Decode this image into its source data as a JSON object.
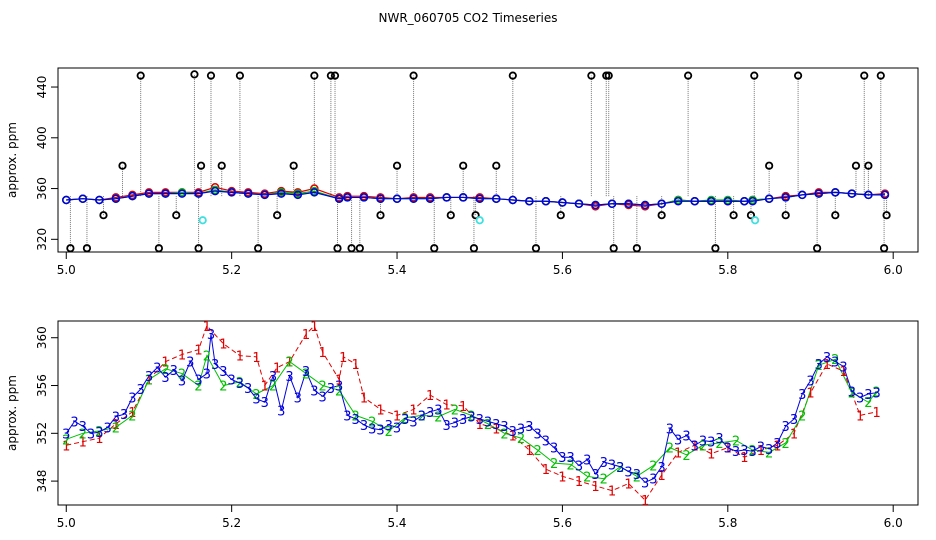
{
  "figure": {
    "title": "NWR_060705  CO2 Timeseries"
  },
  "colors": {
    "red": "#e00000",
    "green": "#00c000",
    "blue": "#0000e0",
    "black": "#000000",
    "cyan": "#40e0e0",
    "gray": "#777777"
  },
  "chart_data": [
    {
      "type": "line",
      "ylabel": "approx. ppm",
      "xlim": [
        4.99,
        6.03
      ],
      "ylim": [
        310,
        455
      ],
      "xticks": [
        5.0,
        5.2,
        5.4,
        5.6,
        5.8,
        6.0
      ],
      "xtick_labels": [
        "5.0",
        "5.2",
        "5.4",
        "5.6",
        "5.8",
        "6.0"
      ],
      "yticks": [
        320,
        360,
        400,
        440
      ],
      "ytick_labels": [
        "320",
        "360",
        "400",
        "440"
      ],
      "grid": false,
      "series": [
        {
          "color": "red",
          "x": [
            5.0,
            5.02,
            5.04,
            5.06,
            5.08,
            5.1,
            5.12,
            5.14,
            5.16,
            5.18,
            5.2,
            5.22,
            5.24,
            5.26,
            5.28,
            5.3,
            5.33,
            5.34,
            5.36,
            5.38,
            5.4,
            5.42,
            5.44,
            5.46,
            5.48,
            5.5,
            5.52,
            5.54,
            5.56,
            5.58,
            5.6,
            5.62,
            5.64,
            5.66,
            5.68,
            5.7,
            5.72,
            5.74,
            5.76,
            5.78,
            5.8,
            5.82,
            5.83,
            5.85,
            5.87,
            5.89,
            5.91,
            5.93,
            5.95,
            5.97,
            5.99
          ],
          "y": [
            351,
            352,
            351,
            353,
            355,
            357,
            357,
            357,
            357,
            361,
            358,
            357,
            356,
            358,
            357,
            360,
            353,
            354,
            354,
            353,
            352,
            353,
            353,
            353,
            353,
            353,
            352,
            351,
            350,
            350,
            349,
            348,
            346,
            348,
            347,
            346,
            348,
            351,
            350,
            350,
            350,
            350,
            351,
            352,
            354,
            355,
            357,
            357,
            356,
            355,
            356
          ]
        },
        {
          "color": "green",
          "x": [
            5.0,
            5.02,
            5.04,
            5.06,
            5.08,
            5.1,
            5.12,
            5.14,
            5.16,
            5.18,
            5.2,
            5.22,
            5.24,
            5.26,
            5.28,
            5.3,
            5.33,
            5.34,
            5.36,
            5.38,
            5.4,
            5.42,
            5.44,
            5.46,
            5.48,
            5.5,
            5.52,
            5.54,
            5.56,
            5.58,
            5.6,
            5.62,
            5.64,
            5.66,
            5.68,
            5.7,
            5.72,
            5.74,
            5.76,
            5.78,
            5.8,
            5.82,
            5.83,
            5.85,
            5.87,
            5.89,
            5.91,
            5.93,
            5.95,
            5.97,
            5.99
          ],
          "y": [
            351,
            352,
            351,
            352,
            354,
            356,
            356,
            357,
            356,
            359,
            357,
            356,
            355,
            357,
            356,
            358,
            352,
            353,
            353,
            352,
            352,
            352,
            352,
            353,
            353,
            352,
            352,
            351,
            350,
            350,
            349,
            348,
            347,
            348,
            348,
            347,
            348,
            351,
            350,
            351,
            351,
            350,
            351,
            352,
            353,
            355,
            356,
            357,
            356,
            355,
            355
          ]
        },
        {
          "color": "blue",
          "x": [
            5.0,
            5.02,
            5.04,
            5.06,
            5.08,
            5.1,
            5.12,
            5.14,
            5.16,
            5.18,
            5.2,
            5.22,
            5.24,
            5.26,
            5.28,
            5.3,
            5.33,
            5.34,
            5.36,
            5.38,
            5.4,
            5.42,
            5.44,
            5.46,
            5.48,
            5.5,
            5.52,
            5.54,
            5.56,
            5.58,
            5.6,
            5.62,
            5.64,
            5.66,
            5.68,
            5.7,
            5.72,
            5.74,
            5.76,
            5.78,
            5.8,
            5.82,
            5.83,
            5.85,
            5.87,
            5.89,
            5.91,
            5.93,
            5.95,
            5.97,
            5.99
          ],
          "y": [
            351,
            352,
            351,
            352,
            354,
            356,
            356,
            356,
            356,
            358,
            357,
            356,
            355,
            356,
            355,
            357,
            352,
            353,
            353,
            352,
            352,
            352,
            352,
            353,
            353,
            352,
            352,
            351,
            350,
            350,
            349,
            348,
            347,
            348,
            348,
            347,
            348,
            350,
            350,
            350,
            350,
            350,
            350,
            352,
            353,
            355,
            356,
            357,
            356,
            355,
            355
          ]
        },
        {
          "color": "black",
          "kind": "outlier-circles",
          "x": [
            5.005,
            5.025,
            5.045,
            5.068,
            5.09,
            5.112,
            5.133,
            5.155,
            5.16,
            5.163,
            5.175,
            5.188,
            5.21,
            5.232,
            5.255,
            5.275,
            5.3,
            5.32,
            5.325,
            5.328,
            5.345,
            5.355,
            5.38,
            5.4,
            5.42,
            5.445,
            5.465,
            5.48,
            5.493,
            5.495,
            5.52,
            5.54,
            5.568,
            5.598,
            5.635,
            5.653,
            5.656,
            5.662,
            5.69,
            5.72,
            5.752,
            5.785,
            5.807,
            5.828,
            5.832,
            5.85,
            5.87,
            5.885,
            5.908,
            5.93,
            5.955,
            5.965,
            5.97,
            5.985,
            5.989,
            5.992
          ],
          "y": [
            313,
            313,
            339,
            378,
            449,
            313,
            339,
            450,
            313,
            378,
            449,
            378,
            449,
            313,
            339,
            378,
            449,
            449,
            449,
            313,
            313,
            313,
            339,
            378,
            449,
            313,
            339,
            378,
            313,
            339,
            378,
            449,
            313,
            339,
            449,
            449,
            449,
            313,
            313,
            339,
            449,
            313,
            339,
            339,
            449,
            378,
            339,
            449,
            313,
            339,
            378,
            449,
            378,
            449,
            313,
            339
          ]
        },
        {
          "color": "cyan",
          "kind": "flagged-circles",
          "x": [
            5.165,
            5.5,
            5.833
          ],
          "y": [
            335,
            335,
            335
          ]
        }
      ]
    },
    {
      "type": "scatter",
      "ylabel": "approx. ppm",
      "xlim": [
        4.99,
        6.03
      ],
      "ylim": [
        346,
        361.4
      ],
      "xticks": [
        5.0,
        5.2,
        5.4,
        5.6,
        5.8,
        6.0
      ],
      "xtick_labels": [
        "5.0",
        "5.2",
        "5.4",
        "5.6",
        "5.8",
        "6.0"
      ],
      "yticks": [
        348,
        352,
        356,
        360
      ],
      "ytick_labels": [
        "348",
        "352",
        "356",
        "360"
      ],
      "grid": false,
      "series": [
        {
          "marker": "1",
          "color": "red",
          "x": [
            5.0,
            5.02,
            5.04,
            5.06,
            5.08,
            5.1,
            5.12,
            5.14,
            5.16,
            5.17,
            5.19,
            5.21,
            5.23,
            5.24,
            5.255,
            5.27,
            5.29,
            5.3,
            5.31,
            5.33,
            5.335,
            5.35,
            5.36,
            5.38,
            5.4,
            5.42,
            5.44,
            5.46,
            5.48,
            5.5,
            5.52,
            5.54,
            5.56,
            5.58,
            5.6,
            5.62,
            5.64,
            5.66,
            5.68,
            5.7,
            5.72,
            5.74,
            5.76,
            5.78,
            5.8,
            5.82,
            5.84,
            5.86,
            5.88,
            5.9,
            5.92,
            5.94,
            5.96,
            5.98
          ],
          "y": [
            351,
            351.3,
            351.6,
            352.8,
            353.8,
            356.5,
            358,
            358.6,
            359,
            361,
            359.5,
            358.5,
            358.4,
            356,
            357.5,
            358,
            360.3,
            361,
            358.8,
            356.5,
            358.4,
            357.8,
            355,
            354,
            353.5,
            354,
            355.2,
            354.4,
            354.3,
            352.8,
            352.4,
            351.8,
            350.6,
            349,
            348.4,
            348,
            347.6,
            347.2,
            347.8,
            346.4,
            348.5,
            350.4,
            351,
            350.3,
            350.8,
            350,
            350.6,
            351,
            352,
            355.4,
            357.8,
            357.2,
            353.5,
            353.8
          ]
        },
        {
          "marker": "2",
          "color": "green",
          "x": [
            5.0,
            5.02,
            5.04,
            5.06,
            5.08,
            5.1,
            5.12,
            5.14,
            5.16,
            5.17,
            5.19,
            5.21,
            5.23,
            5.25,
            5.27,
            5.29,
            5.31,
            5.33,
            5.35,
            5.37,
            5.39,
            5.41,
            5.43,
            5.45,
            5.47,
            5.49,
            5.51,
            5.53,
            5.55,
            5.57,
            5.59,
            5.61,
            5.63,
            5.65,
            5.67,
            5.69,
            5.71,
            5.73,
            5.75,
            5.77,
            5.79,
            5.81,
            5.83,
            5.85,
            5.87,
            5.89,
            5.91,
            5.93,
            5.95,
            5.97,
            5.98
          ],
          "y": [
            351.5,
            352,
            352.2,
            352.5,
            353.5,
            356.5,
            357.4,
            357,
            356,
            358.5,
            356,
            356.3,
            355.3,
            356,
            358,
            357,
            356,
            355.6,
            353.5,
            353,
            352.2,
            353.3,
            353.5,
            353.4,
            354,
            353.5,
            352.8,
            352,
            351.6,
            350.6,
            349.5,
            349.4,
            348.4,
            348.2,
            349.2,
            348.4,
            349.3,
            350.8,
            350.2,
            351,
            351.2,
            351.4,
            350.6,
            350.4,
            351.2,
            353.5,
            357.7,
            358.2,
            355.4,
            354.6,
            355.5
          ]
        },
        {
          "marker": "3",
          "color": "blue",
          "x": [
            5.0,
            5.01,
            5.02,
            5.03,
            5.04,
            5.05,
            5.06,
            5.07,
            5.08,
            5.09,
            5.1,
            5.11,
            5.12,
            5.13,
            5.14,
            5.15,
            5.16,
            5.17,
            5.175,
            5.18,
            5.19,
            5.2,
            5.21,
            5.22,
            5.23,
            5.24,
            5.25,
            5.26,
            5.27,
            5.28,
            5.29,
            5.3,
            5.31,
            5.32,
            5.33,
            5.34,
            5.35,
            5.36,
            5.37,
            5.38,
            5.39,
            5.4,
            5.41,
            5.42,
            5.43,
            5.44,
            5.45,
            5.46,
            5.47,
            5.48,
            5.49,
            5.5,
            5.51,
            5.52,
            5.53,
            5.54,
            5.55,
            5.56,
            5.57,
            5.58,
            5.59,
            5.6,
            5.61,
            5.62,
            5.63,
            5.64,
            5.65,
            5.66,
            5.67,
            5.68,
            5.69,
            5.7,
            5.71,
            5.72,
            5.73,
            5.74,
            5.75,
            5.76,
            5.77,
            5.78,
            5.79,
            5.8,
            5.81,
            5.82,
            5.83,
            5.84,
            5.85,
            5.86,
            5.87,
            5.88,
            5.89,
            5.9,
            5.91,
            5.92,
            5.93,
            5.94,
            5.95,
            5.96,
            5.97,
            5.98
          ],
          "y": [
            352,
            353,
            352.6,
            352,
            352.1,
            352.5,
            353.4,
            353.6,
            355,
            355.7,
            356.8,
            357.5,
            356.7,
            357.3,
            356.4,
            358,
            356.5,
            357,
            360.3,
            357.8,
            357.2,
            356.5,
            356.2,
            355.8,
            354.9,
            354.6,
            356.8,
            353.9,
            356.8,
            355,
            357.2,
            355.6,
            355.1,
            355.8,
            356,
            353.5,
            353.2,
            352.7,
            352.4,
            352.3,
            352.7,
            352.5,
            353.2,
            353,
            353.5,
            353.8,
            354,
            352.7,
            352.9,
            353.2,
            353.4,
            353.2,
            353,
            352.8,
            352.6,
            352.2,
            352.4,
            352.6,
            352,
            351.4,
            350.8,
            350,
            350,
            349.3,
            349.8,
            348.6,
            349.6,
            349.4,
            349.2,
            348.8,
            348.6,
            347.9,
            348.2,
            349.2,
            352.4,
            351.5,
            351.8,
            351,
            351.4,
            351.3,
            351.6,
            350.8,
            350.5,
            350.6,
            350.5,
            350.9,
            350.7,
            351.2,
            352.6,
            353.2,
            355.3,
            356.4,
            357.8,
            358.4,
            358,
            357.6,
            355.5,
            355,
            355.3,
            355.4
          ]
        }
      ]
    }
  ]
}
